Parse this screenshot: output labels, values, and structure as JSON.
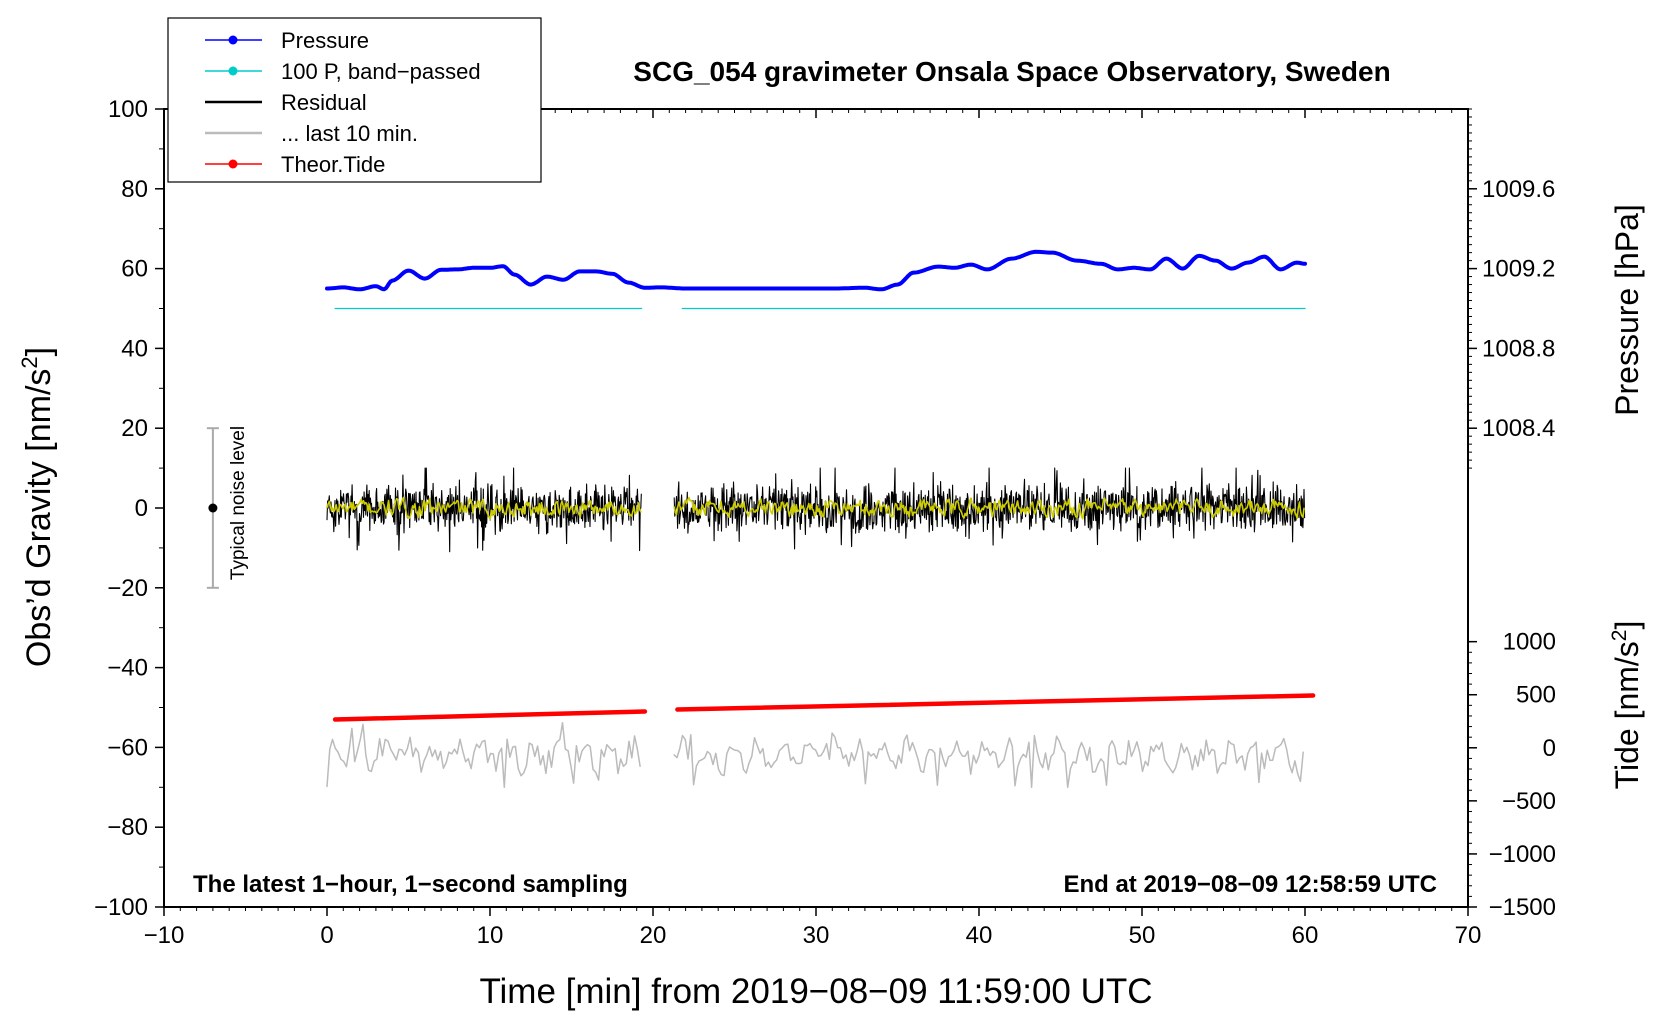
{
  "chart_data": {
    "type": "line",
    "title": "SCG_054 gravimeter Onsala Space Observatory, Sweden",
    "xlabel": "Time [min] from 2019−08−09 11:59:00 UTC",
    "ylabel_main": "Obs’d Gravity [nm/s",
    "ylabel_main_sup": "2",
    "ylabel_main_end": "]",
    "ylabel_pressure": "Pressure [hPa]",
    "ylabel_tide": "Tide [nm/s",
    "ylabel_tide_sup": "2",
    "ylabel_tide_end": "]",
    "xlim": [
      -10,
      70
    ],
    "ylim": [
      -100,
      100
    ],
    "x_ticks": [
      "−10",
      "0",
      "10",
      "20",
      "30",
      "40",
      "50",
      "60",
      "70"
    ],
    "y_ticks": [
      "100",
      "80",
      "60",
      "40",
      "20",
      "0",
      "−20",
      "−40",
      "−60",
      "−80",
      "−100"
    ],
    "pressure_ticks": [
      "1009.6",
      "1009.2",
      "1008.8",
      "1008.4"
    ],
    "pressure_tick_gravity_positions": [
      80,
      60,
      40,
      20
    ],
    "tide_ticks": [
      "1000",
      "500",
      "0",
      "−500",
      "−1000",
      "−1500"
    ],
    "tide_range": [
      -1500,
      1000
    ],
    "tide_axis_gravity_range": [
      -100,
      -33.5
    ],
    "annotation_left": "The latest 1−hour, 1−second sampling",
    "annotation_right": "End at 2019−08−09 12:58:59 UTC",
    "noise_label": "Typical noise level",
    "noise_bar": {
      "x": -7,
      "center": 0,
      "low": -20,
      "high": 20
    },
    "legend": [
      {
        "label": "Pressure",
        "color": "#0000ff",
        "marker": true
      },
      {
        "label": "100 P, band−passed",
        "color": "#00cccc",
        "marker": true
      },
      {
        "label": "Residual",
        "color": "#000000",
        "marker": false
      },
      {
        "label": "... last 10 min.",
        "color": "#bbbbbb",
        "marker": false
      },
      {
        "label": "Theor.Tide",
        "color": "#ff0000",
        "marker": true
      }
    ],
    "series": [
      {
        "name": "Pressure",
        "color": "#0000ff",
        "x": [
          0,
          1,
          2,
          3,
          3.5,
          4,
          5,
          6,
          7,
          8,
          9,
          10,
          10.8,
          11.5,
          12.5,
          13.5,
          14.5,
          15.5,
          16.5,
          17.5,
          18.5,
          19.5,
          20.5,
          22,
          25,
          28,
          31,
          33,
          34,
          35,
          36,
          37.5,
          38.5,
          39.5,
          40.5,
          42,
          43.5,
          44.5,
          46,
          47.5,
          48.5,
          49.5,
          50.5,
          51.5,
          52.5,
          53.5,
          54.5,
          55.5,
          56.5,
          57.5,
          58.5,
          59.5,
          60
        ],
        "values": [
          55,
          55.3,
          54.8,
          55.6,
          54.8,
          57,
          59.5,
          57.5,
          59.7,
          59.8,
          60.2,
          60.2,
          60.6,
          58.5,
          56,
          58,
          57.2,
          59.3,
          59.3,
          58.7,
          56.5,
          55.2,
          55.3,
          55,
          55,
          55,
          55,
          55.2,
          54.8,
          56,
          59,
          60.5,
          60.2,
          61,
          59.8,
          62.5,
          64.2,
          64,
          62,
          61.2,
          59.8,
          60.2,
          59.8,
          62.5,
          60,
          63.2,
          62,
          60,
          61.5,
          63,
          59.8,
          61.5,
          61.2
        ]
      },
      {
        "name": "100 P, band−passed",
        "color": "#00cccc",
        "segments": [
          {
            "x": [
              0.5,
              19.3
            ],
            "values": [
              50,
              50
            ]
          },
          {
            "x": [
              21.8,
              60
            ],
            "values": [
              50,
              50
            ]
          }
        ]
      },
      {
        "name": "Residual",
        "color": "#000000",
        "segments": [
          {
            "x_range": [
              0,
              19.3
            ]
          },
          {
            "x_range": [
              21.3,
              60
            ]
          }
        ],
        "amplitude": 5,
        "peak_range": [
          -12,
          10
        ]
      },
      {
        "name": "Residual smoothed",
        "color": "#cccc00",
        "segments": [
          {
            "x_range": [
              0,
              19.3
            ]
          },
          {
            "x_range": [
              21.3,
              60
            ]
          }
        ],
        "amplitude": 2
      },
      {
        "name": "Theor.Tide",
        "color": "#ff0000",
        "segments": [
          {
            "x": [
              0.5,
              19.5
            ],
            "values": [
              -53,
              -51
            ]
          },
          {
            "x": [
              21.5,
              60.5
            ],
            "values": [
              -50.5,
              -47
            ]
          }
        ]
      },
      {
        "name": "... last 10 min.",
        "color": "#bbbbbb",
        "segments": [
          {
            "x_range": [
              0,
              19.3
            ]
          },
          {
            "x_range": [
              21.3,
              60
            ]
          }
        ],
        "center": -62,
        "range": [
          -70,
          -52
        ]
      }
    ]
  }
}
